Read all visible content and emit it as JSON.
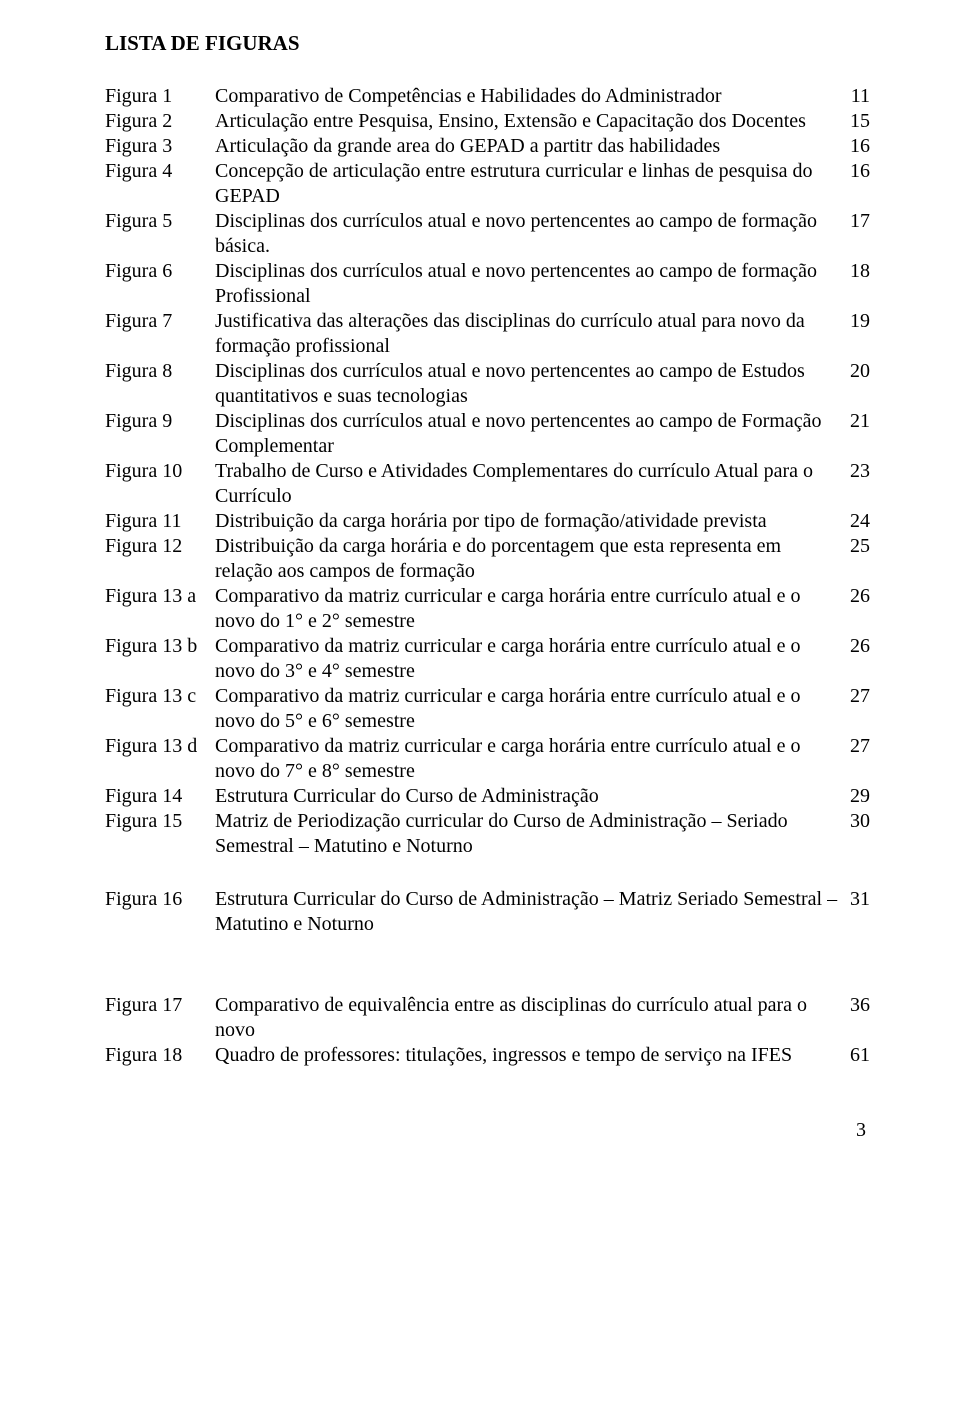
{
  "title": "LISTA DE FIGURAS",
  "page_number": "3",
  "rows": [
    {
      "label": "Figura 1",
      "desc": "Comparativo de Competências e Habilidades do Administrador",
      "page": "11"
    },
    {
      "label": "Figura 2",
      "desc": "Articulação entre Pesquisa, Ensino, Extensão e Capacitação dos Docentes",
      "page": "15"
    },
    {
      "label": "Figura 3",
      "desc": "Articulação  da grande area do GEPAD a partitr das habilidades",
      "page": "16"
    },
    {
      "label": "Figura 4",
      "desc": "Concepção de articulação entre estrutura curricular e linhas de pesquisa do GEPAD",
      "page": "16"
    },
    {
      "label": "Figura 5",
      "desc": "Disciplinas dos currículos atual e novo pertencentes ao campo de formação básica.",
      "page": "17"
    },
    {
      "label": "Figura 6",
      "desc": "Disciplinas dos currículos atual e novo pertencentes ao campo de formação Profissional",
      "page": "18"
    },
    {
      "label": "Figura 7",
      "desc": "Justificativa das alterações das disciplinas do currículo atual para novo da formação profissional",
      "page": "19"
    },
    {
      "label": "Figura 8",
      "desc": "Disciplinas dos currículos atual e novo pertencentes ao campo de Estudos quantitativos e suas tecnologias",
      "page": "20"
    },
    {
      "label": "Figura 9",
      "desc": "Disciplinas dos currículos atual e novo pertencentes ao campo de Formação Complementar",
      "page": "21"
    },
    {
      "label": "Figura 10",
      "desc": "Trabalho de Curso e Atividades Complementares do currículo Atual para o Currículo",
      "page": "23",
      "indent": true
    },
    {
      "label": "Figura 11",
      "desc": "Distribuição da carga horária por tipo de formação/atividade prevista",
      "page": "24",
      "indent": true
    },
    {
      "label": "Figura 12",
      "desc": "Distribuição da carga horária e do porcentagem que esta representa em relação aos campos de formação",
      "page": "25"
    },
    {
      "label": "Figura 13 a",
      "desc": "Comparativo da matriz curricular e carga horária entre currículo atual e o novo do 1°  e 2° semestre",
      "page": "26"
    },
    {
      "label": "Figura 13 b",
      "desc": "Comparativo da matriz curricular e carga horária entre currículo atual e o novo do 3°  e 4° semestre",
      "page": "26"
    },
    {
      "label": "Figura 13 c",
      "desc": "Comparativo da matriz curricular e carga horária entre currículo atual e o novo do 5°  e 6° semestre",
      "page": "27"
    },
    {
      "label": "Figura 13 d",
      "desc": "Comparativo da matriz curricular e carga horária entre currículo atual e o novo do 7°  e 8° semestre",
      "page": "27"
    },
    {
      "label": "Figura 14",
      "desc": "Estrutura Curricular do Curso de Administração",
      "page": "29"
    },
    {
      "label": "Figura 15",
      "desc": "Matriz de Periodização curricular do Curso de Administração – Seriado Semestral – Matutino e Noturno",
      "page": "30",
      "indent": true
    }
  ],
  "rows2": [
    {
      "label": "Figura 16",
      "desc": "Estrutura Curricular do Curso de Administração – Matriz Seriado Semestral – Matutino e Noturno",
      "page": "31"
    }
  ],
  "rows3": [
    {
      "label": "Figura 17",
      "desc": "Comparativo de equivalência entre as disciplinas do currículo atual para o novo",
      "page": "36",
      "indent": true
    },
    {
      "label": "Figura 18",
      "desc": "Quadro de professores: titulações, ingressos e tempo de serviço na IFES",
      "page": "61",
      "indent": true
    }
  ]
}
